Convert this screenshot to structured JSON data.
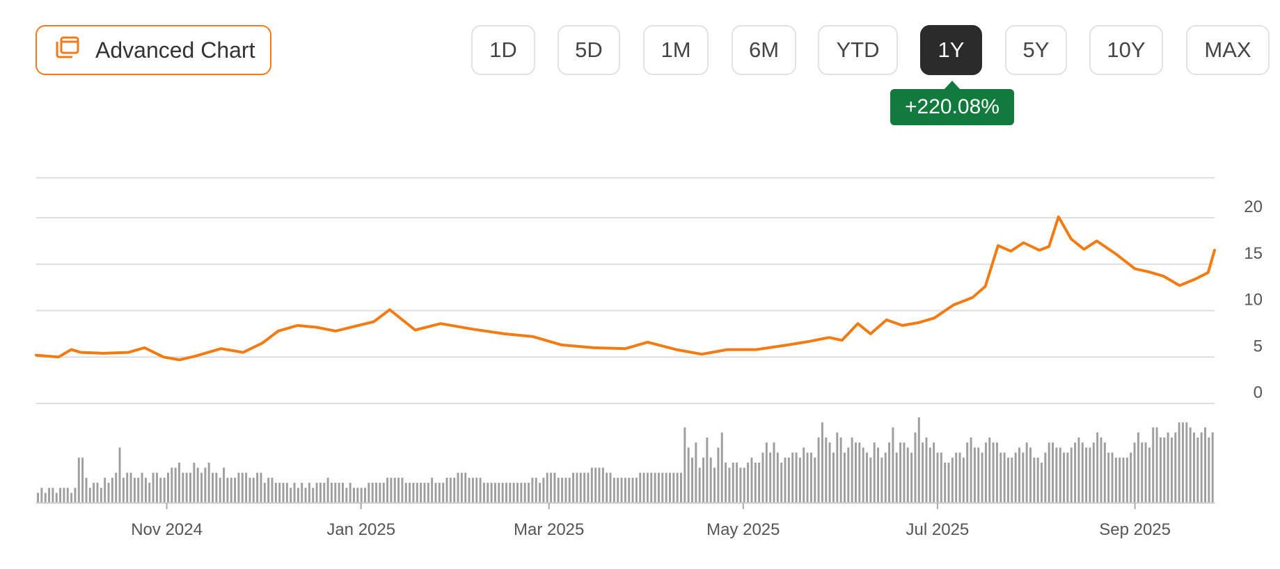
{
  "toolbar": {
    "advanced_chart_label": "Advanced Chart",
    "advanced_chart_icon": "chart-window-icon",
    "accent_color": "#f07a1a",
    "ranges": [
      "1D",
      "5D",
      "1M",
      "6M",
      "YTD",
      "1Y",
      "5Y",
      "10Y",
      "MAX"
    ],
    "active_range": "1Y"
  },
  "change_badge": {
    "text": "+220.08%",
    "color": "#127a3c"
  },
  "chart_data": {
    "type": "line",
    "line_color": "#f47a12",
    "volume_color": "#9e9e9e",
    "grid": true,
    "y_axis_side": "right",
    "ylim": [
      0,
      25
    ],
    "y_ticks": [
      0,
      5,
      10,
      15,
      20
    ],
    "x_range": [
      "2024-09-21",
      "2025-09-26"
    ],
    "x_ticks": [
      {
        "date": "2024-11-01",
        "label": "Nov 2024"
      },
      {
        "date": "2025-01-01",
        "label": "Jan 2025"
      },
      {
        "date": "2025-03-01",
        "label": "Mar 2025"
      },
      {
        "date": "2025-05-01",
        "label": "May 2025"
      },
      {
        "date": "2025-07-01",
        "label": "Jul 2025"
      },
      {
        "date": "2025-09-01",
        "label": "Sep 2025"
      }
    ],
    "series": [
      {
        "x": [
          "2024-09-21",
          "2024-09-28",
          "2024-10-02",
          "2024-10-05",
          "2024-10-12",
          "2024-10-20",
          "2024-10-25",
          "2024-10-31",
          "2024-11-05",
          "2024-11-10",
          "2024-11-18",
          "2024-11-25",
          "2024-12-01",
          "2024-12-06",
          "2024-12-12",
          "2024-12-18",
          "2024-12-24",
          "2024-12-30",
          "2025-01-05",
          "2025-01-10",
          "2025-01-18",
          "2025-01-26",
          "2025-02-05",
          "2025-02-15",
          "2025-02-24",
          "2025-03-05",
          "2025-03-15",
          "2025-03-25",
          "2025-04-01",
          "2025-04-10",
          "2025-04-18",
          "2025-04-26",
          "2025-05-05",
          "2025-05-15",
          "2025-05-22",
          "2025-05-28",
          "2025-06-01",
          "2025-06-06",
          "2025-06-10",
          "2025-06-15",
          "2025-06-20",
          "2025-06-25",
          "2025-06-30",
          "2025-07-06",
          "2025-07-12",
          "2025-07-16",
          "2025-07-20",
          "2025-07-24",
          "2025-07-28",
          "2025-08-02",
          "2025-08-05",
          "2025-08-08",
          "2025-08-12",
          "2025-08-16",
          "2025-08-20",
          "2025-08-26",
          "2025-09-01",
          "2025-09-05",
          "2025-09-10",
          "2025-09-15",
          "2025-09-20",
          "2025-09-24",
          "2025-09-26"
        ],
        "y": [
          5.2,
          5.0,
          5.8,
          5.5,
          5.4,
          5.5,
          6.0,
          5.0,
          4.7,
          5.1,
          5.9,
          5.5,
          6.5,
          7.8,
          8.4,
          8.2,
          7.8,
          8.3,
          8.8,
          10.1,
          7.9,
          8.6,
          8.0,
          7.5,
          7.2,
          6.3,
          6.0,
          5.9,
          6.6,
          5.8,
          5.3,
          5.8,
          5.8,
          6.3,
          6.7,
          7.1,
          6.8,
          8.6,
          7.5,
          9.0,
          8.4,
          8.7,
          9.2,
          10.6,
          11.4,
          12.6,
          17.0,
          16.4,
          17.3,
          16.5,
          16.9,
          20.1,
          17.7,
          16.6,
          17.5,
          16.1,
          14.5,
          14.2,
          13.7,
          12.7,
          13.4,
          14.1,
          16.5
        ]
      }
    ],
    "volume_series": [
      2,
      3,
      2,
      3,
      3,
      2,
      3,
      3,
      3,
      2,
      3,
      9,
      9,
      5,
      3,
      4,
      4,
      3,
      5,
      4,
      5,
      6,
      11,
      5,
      6,
      6,
      5,
      5,
      6,
      5,
      4,
      6,
      6,
      5,
      5,
      6,
      7,
      7,
      8,
      6,
      6,
      6,
      8,
      7,
      6,
      7,
      8,
      6,
      6,
      5,
      7,
      5,
      5,
      5,
      6,
      6,
      6,
      5,
      5,
      6,
      6,
      4,
      5,
      5,
      4,
      4,
      4,
      4,
      3,
      4,
      3,
      4,
      3,
      4,
      3,
      4,
      4,
      4,
      5,
      4,
      4,
      4,
      4,
      3,
      4,
      3,
      3,
      3,
      3,
      4,
      4,
      4,
      4,
      4,
      5,
      5,
      5,
      5,
      5,
      4,
      4,
      4,
      4,
      4,
      4,
      4,
      5,
      4,
      4,
      4,
      5,
      5,
      5,
      6,
      6,
      6,
      5,
      5,
      5,
      5,
      4,
      4,
      4,
      4,
      4,
      4,
      4,
      4,
      4,
      4,
      4,
      4,
      4,
      5,
      5,
      4,
      5,
      6,
      6,
      6,
      5,
      5,
      5,
      5,
      6,
      6,
      6,
      6,
      6,
      7,
      7,
      7,
      7,
      6,
      6,
      5,
      5,
      5,
      5,
      5,
      5,
      5,
      6,
      6,
      6,
      6,
      6,
      6,
      6,
      6,
      6,
      6,
      6,
      6,
      15,
      11,
      9,
      12,
      7,
      9,
      13,
      9,
      7,
      11,
      14,
      8,
      7,
      8,
      8,
      7,
      7,
      8,
      9,
      8,
      8,
      10,
      12,
      10,
      12,
      10,
      8,
      9,
      9,
      10,
      10,
      9,
      11,
      10,
      10,
      9,
      13,
      16,
      13,
      12,
      10,
      14,
      13,
      10,
      11,
      13,
      12,
      12,
      11,
      10,
      9,
      12,
      11,
      9,
      10,
      12,
      15,
      10,
      12,
      12,
      11,
      10,
      14,
      17,
      12,
      13,
      11,
      12,
      10,
      10,
      8,
      8,
      9,
      10,
      10,
      9,
      12,
      13,
      11,
      11,
      10,
      12,
      13,
      12,
      12,
      10,
      10,
      9,
      9,
      10,
      11,
      10,
      12,
      11,
      9,
      9,
      8,
      10,
      12,
      12,
      11,
      11,
      10,
      10,
      11,
      12,
      13,
      12,
      11,
      11,
      12,
      14,
      13,
      12,
      10,
      10,
      9,
      9,
      9,
      9,
      10,
      12,
      14,
      12,
      12,
      11,
      15,
      15,
      13,
      13,
      14,
      13,
      14,
      16,
      16,
      16,
      15,
      14,
      13,
      14,
      15,
      13,
      14
    ]
  }
}
